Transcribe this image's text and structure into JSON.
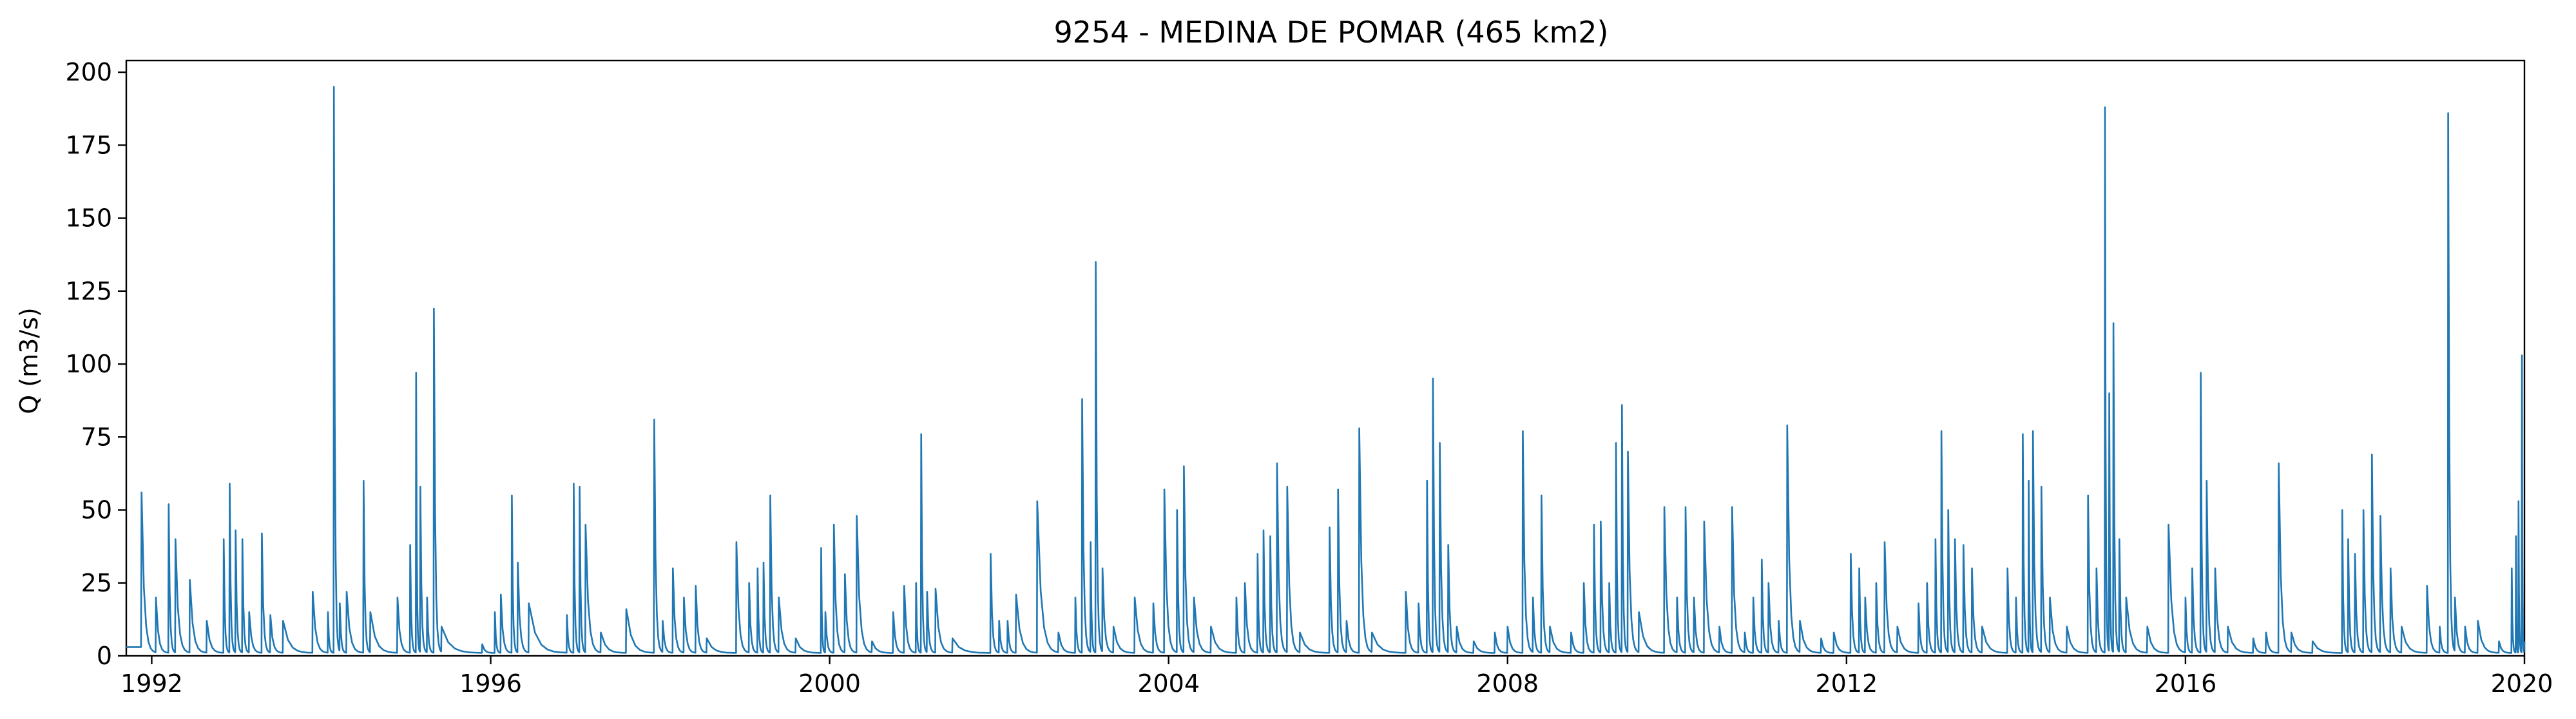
{
  "chart_data": {
    "type": "line",
    "title": "9254 - MEDINA DE POMAR (465 km2)",
    "xlabel": "",
    "ylabel": "Q (m3/s)",
    "xlim": [
      1991.7,
      2020.0
    ],
    "ylim": [
      0,
      204
    ],
    "x_ticks": [
      "1992",
      "1996",
      "2000",
      "2004",
      "2008",
      "2012",
      "2016",
      "2020"
    ],
    "y_ticks": [
      "0",
      "25",
      "50",
      "75",
      "100",
      "125",
      "150",
      "175",
      "200"
    ],
    "grid": false,
    "legend": "none",
    "line_color": "#1f77b4",
    "baseflow_m3s": 1.0,
    "series": [
      {
        "peaks": [
          [
            1991.88,
            56
          ],
          [
            1992.05,
            20
          ],
          [
            1992.2,
            52
          ],
          [
            1992.28,
            40
          ],
          [
            1992.45,
            26
          ],
          [
            1992.65,
            12
          ],
          [
            1992.85,
            40
          ],
          [
            1992.92,
            59
          ],
          [
            1992.99,
            43
          ],
          [
            1993.07,
            40
          ],
          [
            1993.15,
            15
          ],
          [
            1993.3,
            42
          ],
          [
            1993.4,
            14
          ],
          [
            1993.55,
            12
          ],
          [
            1993.9,
            22
          ],
          [
            1994.08,
            15
          ],
          [
            1994.15,
            195
          ],
          [
            1994.22,
            18
          ],
          [
            1994.3,
            22
          ],
          [
            1994.5,
            60
          ],
          [
            1994.58,
            15
          ],
          [
            1994.9,
            20
          ],
          [
            1995.05,
            38
          ],
          [
            1995.12,
            97
          ],
          [
            1995.17,
            58
          ],
          [
            1995.25,
            20
          ],
          [
            1995.33,
            119
          ],
          [
            1995.42,
            10
          ],
          [
            1995.9,
            4
          ],
          [
            1996.05,
            15
          ],
          [
            1996.12,
            21
          ],
          [
            1996.25,
            55
          ],
          [
            1996.32,
            32
          ],
          [
            1996.45,
            18
          ],
          [
            1996.9,
            14
          ],
          [
            1996.98,
            59
          ],
          [
            1997.05,
            58
          ],
          [
            1997.12,
            45
          ],
          [
            1997.3,
            8
          ],
          [
            1997.6,
            16
          ],
          [
            1997.93,
            81
          ],
          [
            1998.03,
            12
          ],
          [
            1998.15,
            30
          ],
          [
            1998.28,
            20
          ],
          [
            1998.42,
            24
          ],
          [
            1998.55,
            6
          ],
          [
            1998.9,
            39
          ],
          [
            1999.05,
            25
          ],
          [
            1999.15,
            30
          ],
          [
            1999.22,
            32
          ],
          [
            1999.3,
            55
          ],
          [
            1999.4,
            20
          ],
          [
            1999.6,
            6
          ],
          [
            1999.9,
            37
          ],
          [
            1999.95,
            15
          ],
          [
            2000.05,
            45
          ],
          [
            2000.18,
            28
          ],
          [
            2000.32,
            48
          ],
          [
            2000.5,
            5
          ],
          [
            2000.75,
            15
          ],
          [
            2000.88,
            24
          ],
          [
            2001.02,
            25
          ],
          [
            2001.08,
            76
          ],
          [
            2001.15,
            22
          ],
          [
            2001.25,
            23
          ],
          [
            2001.45,
            6
          ],
          [
            2001.9,
            35
          ],
          [
            2002.0,
            12
          ],
          [
            2002.1,
            12
          ],
          [
            2002.2,
            21
          ],
          [
            2002.45,
            53
          ],
          [
            2002.7,
            8
          ],
          [
            2002.9,
            20
          ],
          [
            2002.98,
            88
          ],
          [
            2003.08,
            39
          ],
          [
            2003.14,
            135
          ],
          [
            2003.22,
            30
          ],
          [
            2003.35,
            10
          ],
          [
            2003.6,
            20
          ],
          [
            2003.82,
            18
          ],
          [
            2003.95,
            57
          ],
          [
            2004.1,
            50
          ],
          [
            2004.18,
            65
          ],
          [
            2004.3,
            20
          ],
          [
            2004.5,
            10
          ],
          [
            2004.8,
            20
          ],
          [
            2004.9,
            25
          ],
          [
            2005.05,
            35
          ],
          [
            2005.12,
            43
          ],
          [
            2005.2,
            41
          ],
          [
            2005.28,
            66
          ],
          [
            2005.4,
            58
          ],
          [
            2005.55,
            8
          ],
          [
            2005.9,
            44
          ],
          [
            2006.0,
            57
          ],
          [
            2006.1,
            12
          ],
          [
            2006.25,
            78
          ],
          [
            2006.4,
            8
          ],
          [
            2006.8,
            22
          ],
          [
            2006.95,
            18
          ],
          [
            2007.05,
            60
          ],
          [
            2007.12,
            95
          ],
          [
            2007.2,
            73
          ],
          [
            2007.3,
            38
          ],
          [
            2007.4,
            10
          ],
          [
            2007.6,
            5
          ],
          [
            2007.85,
            8
          ],
          [
            2008.0,
            10
          ],
          [
            2008.18,
            77
          ],
          [
            2008.3,
            20
          ],
          [
            2008.4,
            55
          ],
          [
            2008.5,
            10
          ],
          [
            2008.75,
            8
          ],
          [
            2008.9,
            25
          ],
          [
            2009.02,
            45
          ],
          [
            2009.1,
            46
          ],
          [
            2009.2,
            25
          ],
          [
            2009.28,
            73
          ],
          [
            2009.35,
            86
          ],
          [
            2009.42,
            70
          ],
          [
            2009.55,
            15
          ],
          [
            2009.85,
            51
          ],
          [
            2010.0,
            20
          ],
          [
            2010.1,
            51
          ],
          [
            2010.2,
            20
          ],
          [
            2010.32,
            46
          ],
          [
            2010.5,
            10
          ],
          [
            2010.65,
            51
          ],
          [
            2010.8,
            8
          ],
          [
            2010.9,
            20
          ],
          [
            2011.0,
            33
          ],
          [
            2011.08,
            25
          ],
          [
            2011.2,
            12
          ],
          [
            2011.3,
            79
          ],
          [
            2011.45,
            12
          ],
          [
            2011.7,
            6
          ],
          [
            2011.85,
            8
          ],
          [
            2012.05,
            35
          ],
          [
            2012.15,
            30
          ],
          [
            2012.22,
            20
          ],
          [
            2012.35,
            25
          ],
          [
            2012.45,
            39
          ],
          [
            2012.6,
            10
          ],
          [
            2012.85,
            18
          ],
          [
            2012.95,
            25
          ],
          [
            2013.05,
            40
          ],
          [
            2013.12,
            77
          ],
          [
            2013.2,
            50
          ],
          [
            2013.28,
            40
          ],
          [
            2013.38,
            38
          ],
          [
            2013.48,
            30
          ],
          [
            2013.6,
            10
          ],
          [
            2013.9,
            30
          ],
          [
            2014.0,
            20
          ],
          [
            2014.08,
            76
          ],
          [
            2014.15,
            60
          ],
          [
            2014.2,
            77
          ],
          [
            2014.3,
            58
          ],
          [
            2014.4,
            20
          ],
          [
            2014.6,
            10
          ],
          [
            2014.85,
            55
          ],
          [
            2014.95,
            30
          ],
          [
            2015.05,
            188
          ],
          [
            2015.1,
            90
          ],
          [
            2015.15,
            114
          ],
          [
            2015.22,
            40
          ],
          [
            2015.3,
            20
          ],
          [
            2015.55,
            10
          ],
          [
            2015.8,
            45
          ],
          [
            2016.0,
            20
          ],
          [
            2016.08,
            30
          ],
          [
            2016.18,
            97
          ],
          [
            2016.25,
            60
          ],
          [
            2016.35,
            30
          ],
          [
            2016.5,
            10
          ],
          [
            2016.8,
            6
          ],
          [
            2016.95,
            8
          ],
          [
            2017.1,
            66
          ],
          [
            2017.25,
            8
          ],
          [
            2017.5,
            5
          ],
          [
            2017.85,
            50
          ],
          [
            2017.92,
            40
          ],
          [
            2018.0,
            35
          ],
          [
            2018.1,
            50
          ],
          [
            2018.2,
            69
          ],
          [
            2018.3,
            48
          ],
          [
            2018.42,
            30
          ],
          [
            2018.55,
            10
          ],
          [
            2018.85,
            24
          ],
          [
            2019.0,
            10
          ],
          [
            2019.1,
            186
          ],
          [
            2019.18,
            20
          ],
          [
            2019.3,
            10
          ],
          [
            2019.45,
            12
          ],
          [
            2019.7,
            5
          ],
          [
            2019.85,
            30
          ],
          [
            2019.9,
            41
          ],
          [
            2019.93,
            53
          ],
          [
            2019.97,
            103
          ]
        ]
      }
    ]
  }
}
